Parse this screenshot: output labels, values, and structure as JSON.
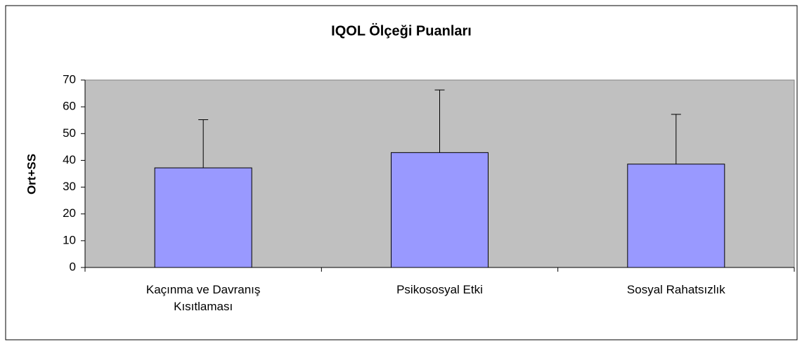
{
  "chart_data": {
    "type": "bar",
    "title": "IQOL Ölçeği Puanları",
    "y_label": "Ort+SS",
    "categories": [
      "Kaçınma ve Davranış Kısıtlaması",
      "Psikososyal Etki",
      "Sosyal Rahatsızlık"
    ],
    "values": [
      37.2,
      42.9,
      38.6
    ],
    "errors": [
      18.0,
      23.4,
      18.6
    ],
    "color": "#9999ff",
    "background": "#c0c0c0",
    "ylim": [
      0,
      70
    ],
    "yticks": [
      0,
      10,
      20,
      30,
      40,
      50,
      60,
      70
    ]
  }
}
